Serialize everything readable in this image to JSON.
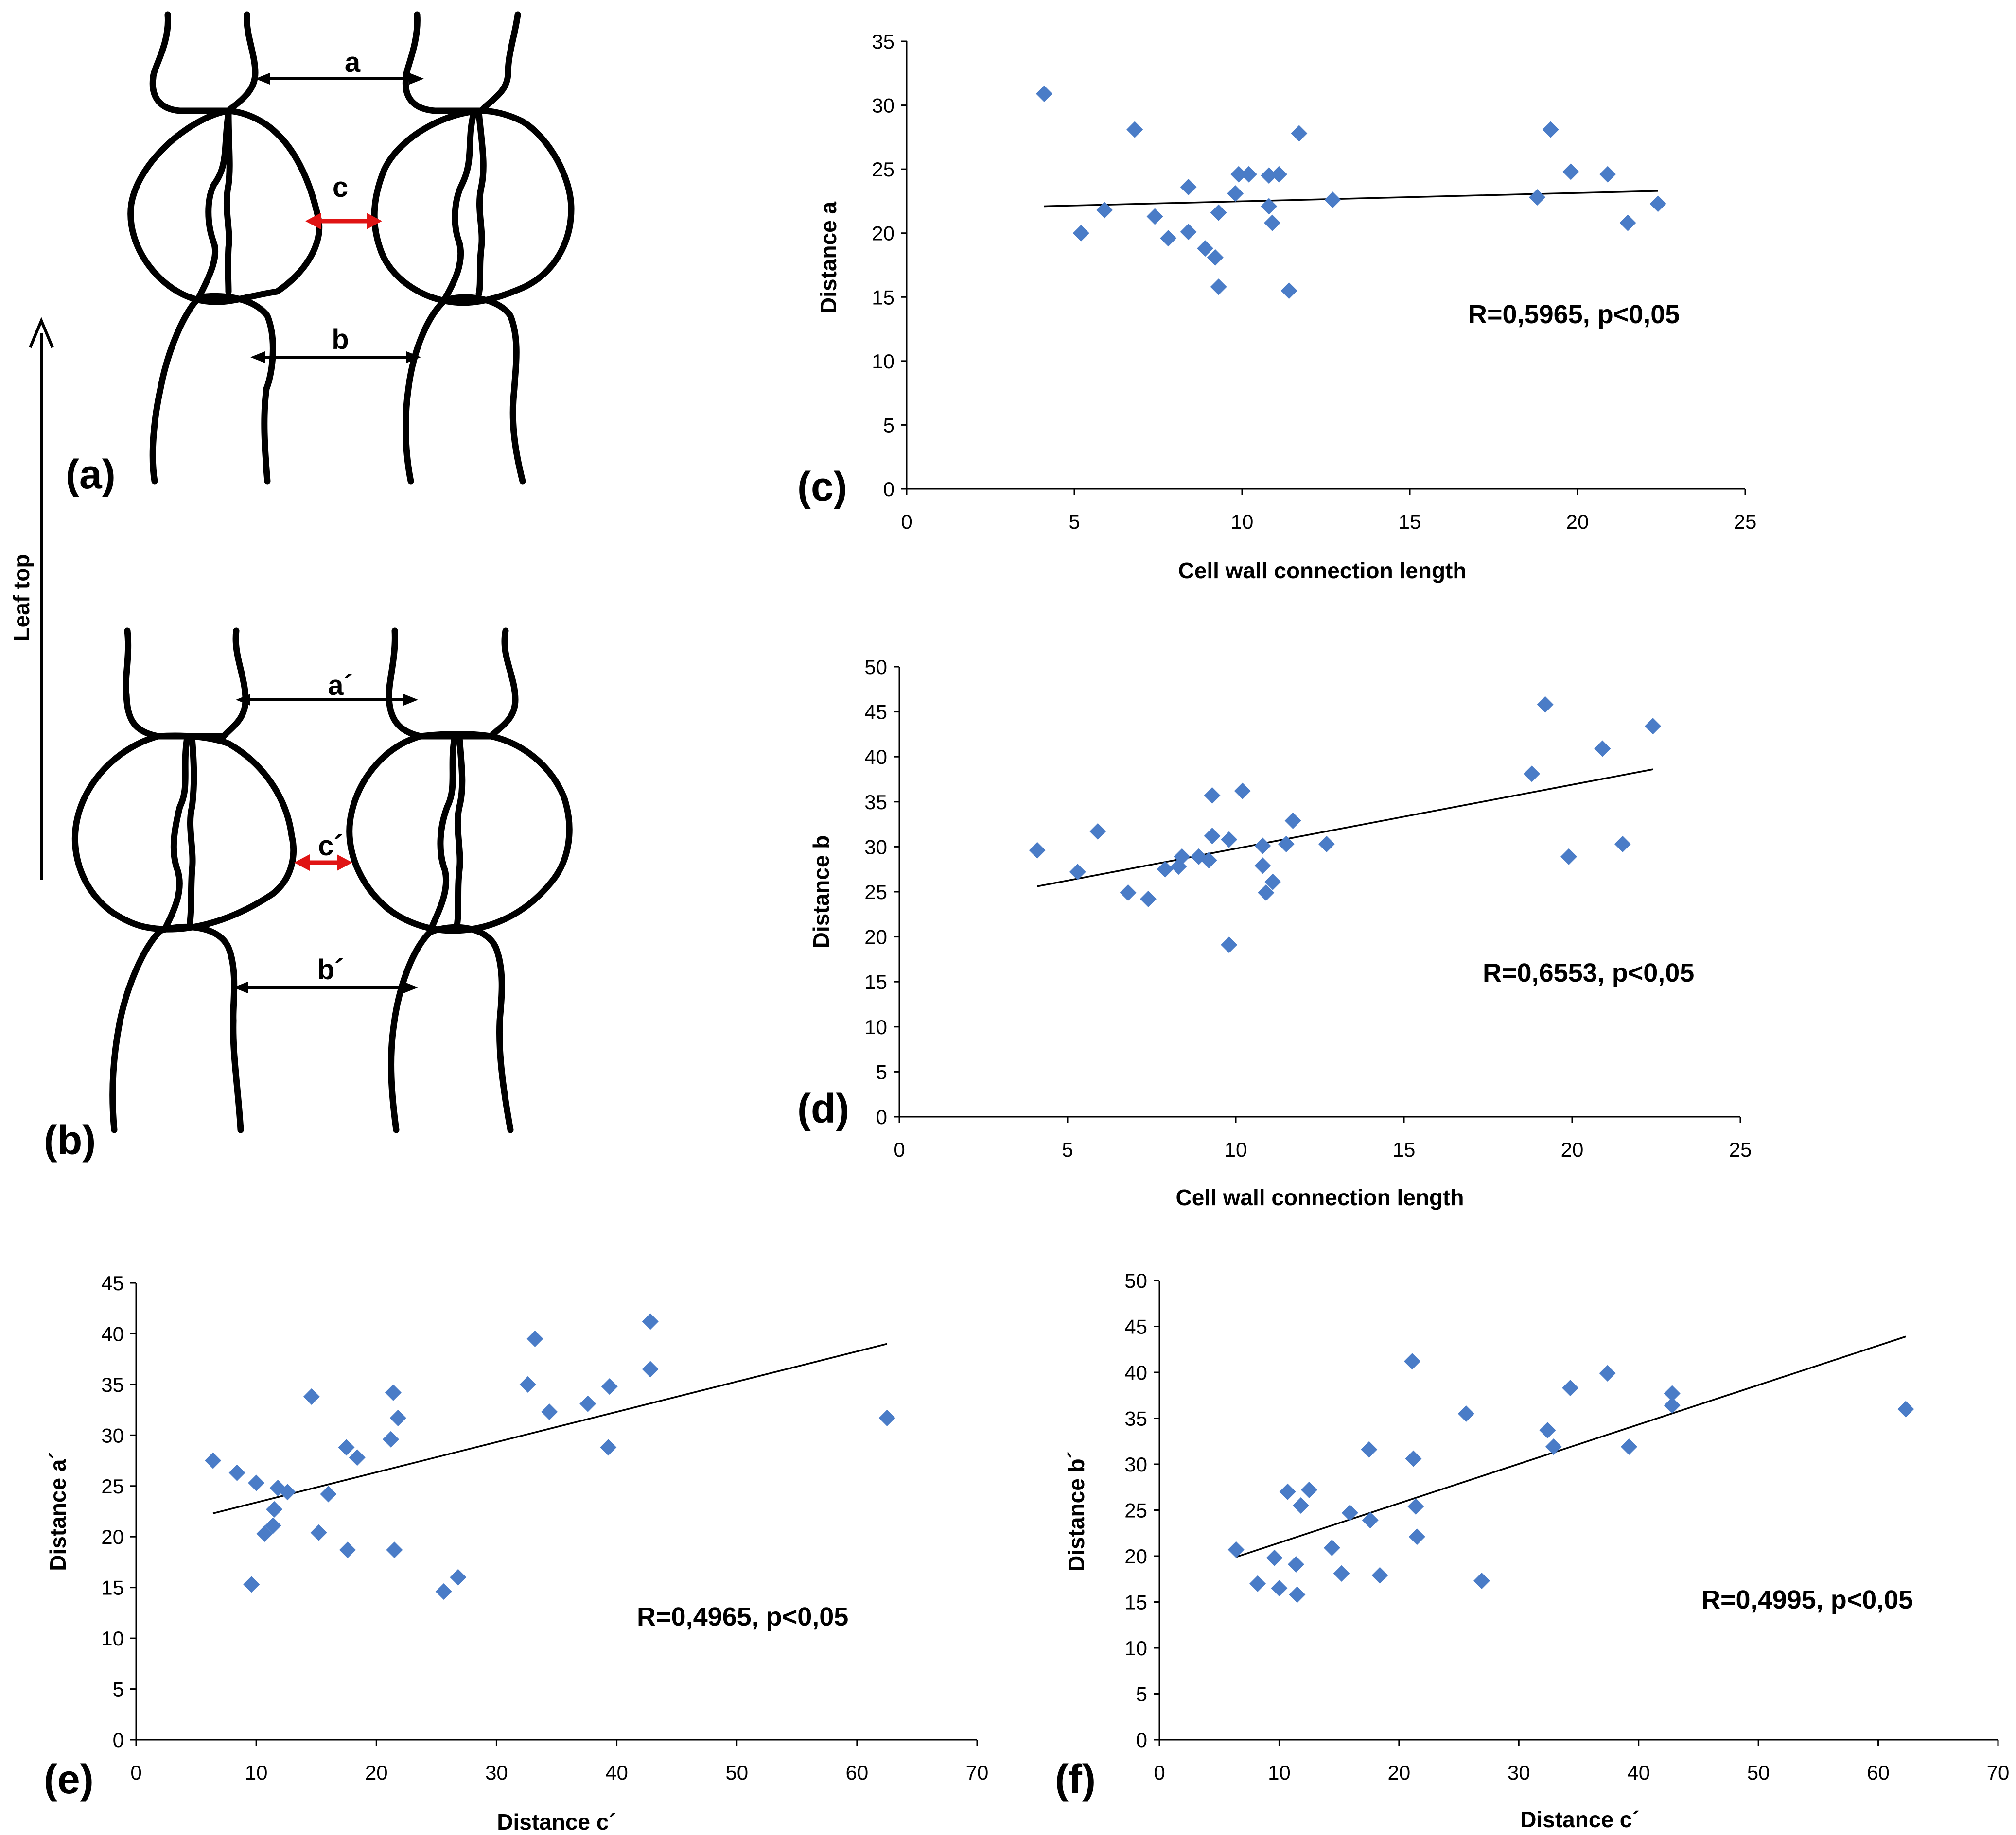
{
  "diagrams": {
    "a": {
      "panel_label": "(a)",
      "labels": {
        "top": "a",
        "mid": "c",
        "bottom": "b"
      }
    },
    "b": {
      "panel_label": "(b)",
      "labels": {
        "top": "a´",
        "mid": "c´",
        "bottom": "b´"
      }
    },
    "leaf_label": "Leaf top"
  },
  "chart_data": [
    {
      "id": "c",
      "panel_label": "(c)",
      "type": "scatter",
      "xlabel": "Cell  wall connection length",
      "ylabel": "Distance  a",
      "xlim": [
        0,
        25
      ],
      "ylim": [
        0,
        35
      ],
      "xticks": [
        0,
        5,
        10,
        15,
        20,
        25
      ],
      "yticks": [
        0,
        5,
        10,
        15,
        20,
        25,
        30,
        35
      ],
      "annotation": "R=0,5965,  p<0,05",
      "trendline": [
        [
          4.1,
          22.1
        ],
        [
          22.4,
          23.3
        ]
      ],
      "points": [
        [
          4.1,
          30.9
        ],
        [
          5.2,
          20.0
        ],
        [
          5.9,
          21.8
        ],
        [
          6.8,
          28.1
        ],
        [
          7.4,
          21.3
        ],
        [
          7.8,
          19.6
        ],
        [
          8.4,
          20.1
        ],
        [
          8.4,
          23.6
        ],
        [
          8.9,
          18.8
        ],
        [
          9.2,
          18.1
        ],
        [
          9.3,
          21.6
        ],
        [
          9.3,
          15.8
        ],
        [
          9.8,
          23.1
        ],
        [
          9.9,
          24.6
        ],
        [
          10.2,
          24.6
        ],
        [
          10.8,
          24.5
        ],
        [
          10.8,
          22.1
        ],
        [
          10.9,
          20.8
        ],
        [
          11.1,
          24.6
        ],
        [
          11.4,
          15.5
        ],
        [
          11.7,
          27.8
        ],
        [
          12.7,
          22.6
        ],
        [
          18.8,
          22.8
        ],
        [
          19.2,
          28.1
        ],
        [
          19.8,
          24.8
        ],
        [
          20.9,
          24.6
        ],
        [
          21.5,
          20.8
        ],
        [
          22.4,
          22.3
        ]
      ]
    },
    {
      "id": "d",
      "panel_label": "(d)",
      "type": "scatter",
      "xlabel": "Cell wall connection length",
      "ylabel": "Distance b",
      "xlim": [
        0,
        25
      ],
      "ylim": [
        0,
        50
      ],
      "xticks": [
        0,
        5,
        10,
        15,
        20,
        25
      ],
      "yticks": [
        0,
        5,
        10,
        15,
        20,
        25,
        30,
        35,
        40,
        45,
        50
      ],
      "annotation": "R=0,6553,  p<0,05",
      "trendline": [
        [
          4.1,
          25.6
        ],
        [
          22.4,
          38.6
        ]
      ],
      "points": [
        [
          4.1,
          29.6
        ],
        [
          5.3,
          27.2
        ],
        [
          5.9,
          31.7
        ],
        [
          6.8,
          24.9
        ],
        [
          7.4,
          24.2
        ],
        [
          7.9,
          27.5
        ],
        [
          8.3,
          27.8
        ],
        [
          8.4,
          28.9
        ],
        [
          8.9,
          28.9
        ],
        [
          9.2,
          28.5
        ],
        [
          9.3,
          35.7
        ],
        [
          9.3,
          31.2
        ],
        [
          9.8,
          30.8
        ],
        [
          9.8,
          19.1
        ],
        [
          10.2,
          36.2
        ],
        [
          10.8,
          30.1
        ],
        [
          10.8,
          27.9
        ],
        [
          10.9,
          24.9
        ],
        [
          11.1,
          26.1
        ],
        [
          11.5,
          30.3
        ],
        [
          11.7,
          32.9
        ],
        [
          12.7,
          30.3
        ],
        [
          18.8,
          38.1
        ],
        [
          19.2,
          45.8
        ],
        [
          19.9,
          28.9
        ],
        [
          20.9,
          40.9
        ],
        [
          21.5,
          30.3
        ],
        [
          22.4,
          43.4
        ]
      ]
    },
    {
      "id": "e",
      "panel_label": "(e)",
      "type": "scatter",
      "xlabel": "Distance  c´",
      "ylabel": "Distance  a´",
      "xlim": [
        0,
        70
      ],
      "ylim": [
        0,
        45
      ],
      "xticks": [
        0,
        10,
        20,
        30,
        40,
        50,
        60,
        70
      ],
      "yticks": [
        0,
        5,
        10,
        15,
        20,
        25,
        30,
        35,
        40,
        45
      ],
      "annotation": "R=0,4965,  p<0,05",
      "trendline": [
        [
          6.4,
          22.3
        ],
        [
          62.5,
          39.0
        ]
      ],
      "points": [
        [
          6.4,
          27.5
        ],
        [
          8.4,
          26.3
        ],
        [
          9.6,
          15.3
        ],
        [
          10.0,
          25.3
        ],
        [
          10.7,
          20.3
        ],
        [
          11.4,
          21.1
        ],
        [
          11.5,
          22.7
        ],
        [
          11.8,
          24.8
        ],
        [
          12.6,
          24.4
        ],
        [
          14.6,
          33.8
        ],
        [
          15.2,
          20.4
        ],
        [
          16.0,
          24.2
        ],
        [
          17.5,
          28.8
        ],
        [
          17.6,
          18.7
        ],
        [
          18.4,
          27.8
        ],
        [
          21.2,
          29.6
        ],
        [
          21.4,
          34.2
        ],
        [
          21.5,
          18.7
        ],
        [
          21.8,
          31.7
        ],
        [
          25.6,
          14.6
        ],
        [
          26.8,
          16.0
        ],
        [
          32.6,
          35.0
        ],
        [
          33.2,
          39.5
        ],
        [
          34.4,
          32.3
        ],
        [
          37.6,
          33.1
        ],
        [
          39.3,
          28.8
        ],
        [
          39.4,
          34.8
        ],
        [
          42.8,
          41.2
        ],
        [
          42.8,
          36.5
        ],
        [
          62.5,
          31.7
        ]
      ]
    },
    {
      "id": "f",
      "panel_label": "(f)",
      "type": "scatter",
      "xlabel": "Distance  c´",
      "ylabel": "Distance  b´",
      "xlim": [
        0,
        70
      ],
      "ylim": [
        0,
        50
      ],
      "xticks": [
        0,
        10,
        20,
        30,
        40,
        50,
        60,
        70
      ],
      "yticks": [
        0,
        5,
        10,
        15,
        20,
        25,
        30,
        35,
        40,
        45,
        50
      ],
      "annotation": "R=0,4995,  p<0,05",
      "trendline": [
        [
          6.4,
          19.9
        ],
        [
          62.3,
          43.9
        ]
      ],
      "points": [
        [
          6.4,
          20.7
        ],
        [
          8.2,
          17.0
        ],
        [
          9.6,
          19.8
        ],
        [
          10.0,
          16.5
        ],
        [
          10.7,
          27.0
        ],
        [
          11.4,
          19.1
        ],
        [
          11.5,
          15.8
        ],
        [
          11.8,
          25.5
        ],
        [
          12.5,
          27.2
        ],
        [
          14.4,
          20.9
        ],
        [
          15.2,
          18.1
        ],
        [
          15.9,
          24.7
        ],
        [
          17.5,
          31.6
        ],
        [
          17.6,
          23.9
        ],
        [
          18.4,
          17.9
        ],
        [
          21.1,
          41.2
        ],
        [
          21.2,
          30.6
        ],
        [
          21.4,
          25.4
        ],
        [
          21.5,
          22.1
        ],
        [
          25.6,
          35.5
        ],
        [
          26.9,
          17.3
        ],
        [
          32.4,
          33.7
        ],
        [
          32.9,
          31.9
        ],
        [
          34.3,
          38.3
        ],
        [
          37.4,
          39.9
        ],
        [
          39.2,
          31.9
        ],
        [
          42.8,
          37.7
        ],
        [
          42.8,
          36.4
        ],
        [
          62.3,
          36.0
        ]
      ]
    }
  ]
}
